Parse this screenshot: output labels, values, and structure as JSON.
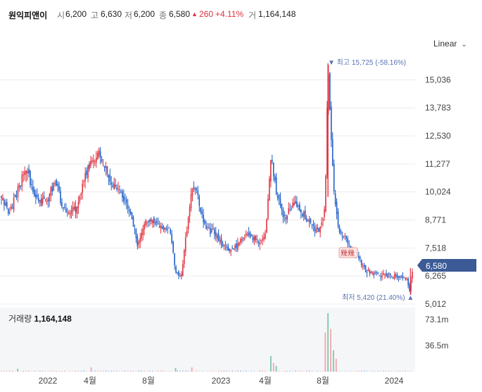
{
  "header": {
    "name": "원익피앤이",
    "open_label": "시",
    "open": "6,200",
    "high_label": "고",
    "high": "6,630",
    "low_label": "저",
    "low": "6,200",
    "close_label": "종",
    "close": "6,580",
    "change_arrow": "▲",
    "change": "260",
    "change_pct": "+4.11%",
    "volume_label": "거",
    "volume": "1,164,148"
  },
  "scale_toggle": {
    "label": "Linear",
    "icon": "chevron-down-icon"
  },
  "colors": {
    "up": "#e0333f",
    "down": "#1f5fc9",
    "vol_up": "#f2a6ad",
    "vol_down": "#8fb3e8",
    "accent": "#3b5a96",
    "annotation": "#5a73b0"
  },
  "annotations": {
    "high_text": "▼ 최고 15,725 (-58.16%)",
    "low_text": "최저 5,420 (21.40%) ▲",
    "marker_text": "幾幾"
  },
  "current_price_label": "6,580",
  "volume_panel": {
    "label": "거래량",
    "value": "1,164,148"
  },
  "chart_data": {
    "type": "candlestick",
    "title": "",
    "x_tick_labels": [
      "2022",
      "4월",
      "8월",
      "2023",
      "4월",
      "8월",
      "2024"
    ],
    "y_ticks": [
      15036,
      13783,
      12530,
      11277,
      10024,
      8771,
      7518,
      6265,
      5012
    ],
    "y_tick_labels": [
      "15,036",
      "13,783",
      "12,530",
      "11,277",
      "10,024",
      "8,771",
      "7,518",
      "6,265",
      "5,012"
    ],
    "ylim": [
      5012,
      16400
    ],
    "grid": true,
    "volume_ticks": [
      "73.1m",
      "36.5m"
    ],
    "volume_ylim": [
      0,
      90
    ],
    "period": [
      "2021-11",
      "2024-02"
    ],
    "price_path": [
      {
        "t": 0,
        "p": 9700
      },
      {
        "t": 3,
        "p": 9100
      },
      {
        "t": 6,
        "p": 10100
      },
      {
        "t": 9,
        "p": 11100
      },
      {
        "t": 12,
        "p": 10000
      },
      {
        "t": 14,
        "p": 9500
      },
      {
        "t": 17,
        "p": 9700
      },
      {
        "t": 20,
        "p": 10600
      },
      {
        "t": 22,
        "p": 9500
      },
      {
        "t": 25,
        "p": 9100
      },
      {
        "t": 28,
        "p": 9300
      },
      {
        "t": 30,
        "p": 10500
      },
      {
        "t": 33,
        "p": 11400
      },
      {
        "t": 36,
        "p": 11800
      },
      {
        "t": 39,
        "p": 10800
      },
      {
        "t": 42,
        "p": 10200
      },
      {
        "t": 44,
        "p": 9900
      },
      {
        "t": 47,
        "p": 9200
      },
      {
        "t": 50,
        "p": 7700
      },
      {
        "t": 53,
        "p": 8800
      },
      {
        "t": 56,
        "p": 8600
      },
      {
        "t": 59,
        "p": 8500
      },
      {
        "t": 62,
        "p": 8300
      },
      {
        "t": 64,
        "p": 6500
      },
      {
        "t": 66,
        "p": 6200
      },
      {
        "t": 68,
        "p": 8200
      },
      {
        "t": 70,
        "p": 10200
      },
      {
        "t": 72,
        "p": 9900
      },
      {
        "t": 75,
        "p": 8400
      },
      {
        "t": 78,
        "p": 8200
      },
      {
        "t": 81,
        "p": 7700
      },
      {
        "t": 84,
        "p": 7300
      },
      {
        "t": 87,
        "p": 7700
      },
      {
        "t": 90,
        "p": 8200
      },
      {
        "t": 93,
        "p": 7900
      },
      {
        "t": 95,
        "p": 7800
      },
      {
        "t": 97,
        "p": 8100
      },
      {
        "t": 99,
        "p": 11600
      },
      {
        "t": 101,
        "p": 10000
      },
      {
        "t": 104,
        "p": 8800
      },
      {
        "t": 107,
        "p": 9500
      },
      {
        "t": 110,
        "p": 9200
      },
      {
        "t": 113,
        "p": 8700
      },
      {
        "t": 116,
        "p": 8200
      },
      {
        "t": 118,
        "p": 8600
      },
      {
        "t": 119,
        "p": 9700
      },
      {
        "t": 120,
        "p": 15700
      },
      {
        "t": 121,
        "p": 13000
      },
      {
        "t": 122,
        "p": 10200
      },
      {
        "t": 124,
        "p": 8300
      },
      {
        "t": 126,
        "p": 8000
      },
      {
        "t": 128,
        "p": 7500
      },
      {
        "t": 130,
        "p": 7300
      },
      {
        "t": 132,
        "p": 6900
      },
      {
        "t": 134,
        "p": 6500
      },
      {
        "t": 137,
        "p": 6400
      },
      {
        "t": 140,
        "p": 6300
      },
      {
        "t": 143,
        "p": 6250
      },
      {
        "t": 146,
        "p": 6200
      },
      {
        "t": 149,
        "p": 6100
      },
      {
        "t": 150,
        "p": 5600
      },
      {
        "t": 151,
        "p": 6580
      }
    ],
    "volume_spikes": [
      {
        "t": 119,
        "v": 55
      },
      {
        "t": 120,
        "v": 82
      },
      {
        "t": 121,
        "v": 60
      },
      {
        "t": 122,
        "v": 30
      },
      {
        "t": 123,
        "v": 18
      },
      {
        "t": 99,
        "v": 22
      },
      {
        "t": 100,
        "v": 12
      },
      {
        "t": 101,
        "v": 8
      },
      {
        "t": 70,
        "v": 6
      },
      {
        "t": 64,
        "v": 5
      },
      {
        "t": 33,
        "v": 6
      },
      {
        "t": 6,
        "v": 4
      }
    ]
  }
}
